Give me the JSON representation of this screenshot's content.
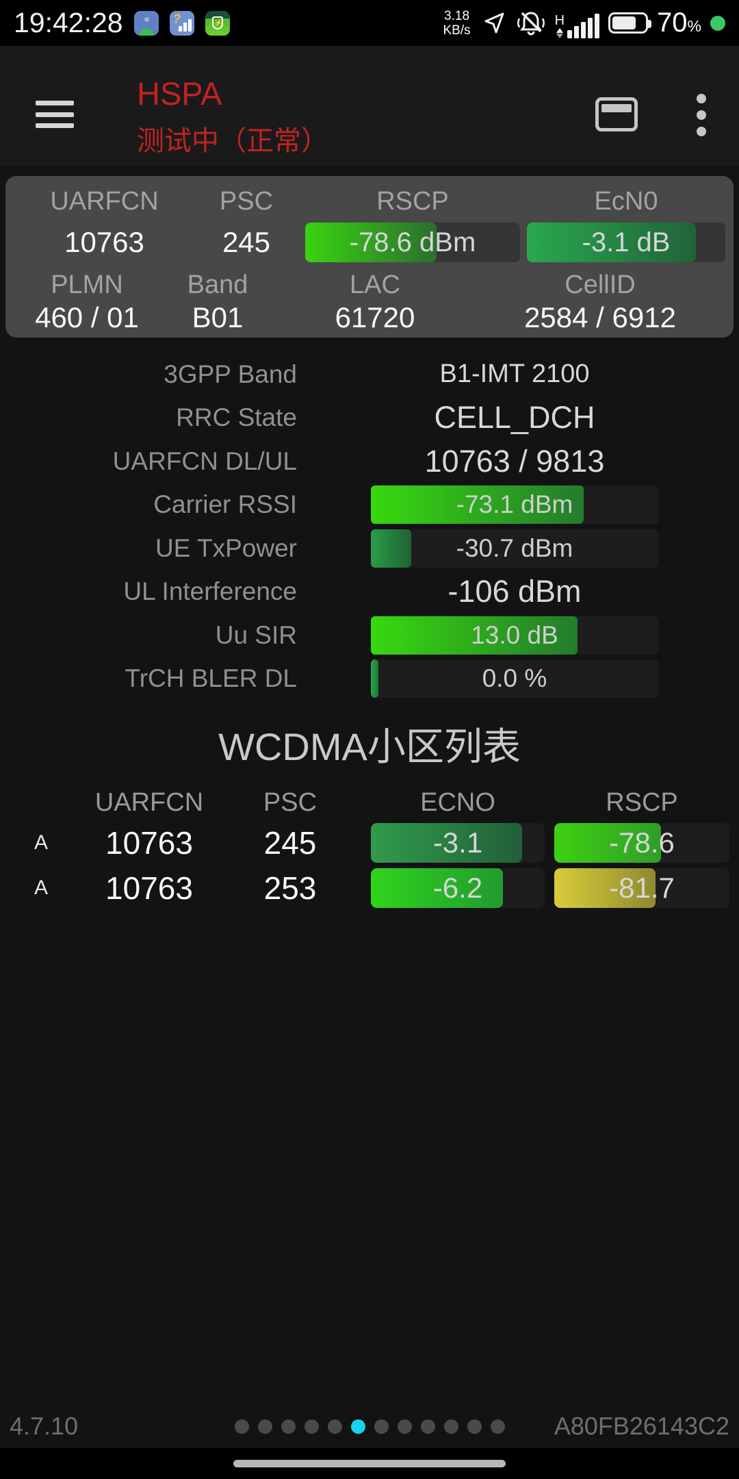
{
  "colors": {
    "bg": "#131313",
    "statusbar_bg": "#000000",
    "appbar_bg": "#1a1a1a",
    "panel_bg": "#484848",
    "track_panel": "#353535",
    "track_dark": "#1d1d1d",
    "accent_red": "#c32222",
    "dot_active": "#19d2f0",
    "dot_inactive": "#4a4a4a",
    "status_green_dot": "#3bc968"
  },
  "icons": {
    "left": [
      "android-app-icon",
      "signal-app-icon",
      "battery-shield-app-icon"
    ],
    "right": [
      "location-arrow-icon",
      "mute-vibrate-bell-icon",
      "signal-strength-icon",
      "battery-icon"
    ],
    "appbar": [
      "menu-icon",
      "card-view-icon",
      "overflow-menu-icon"
    ]
  },
  "status_bar": {
    "time": "19:42:28",
    "net_speed_value": "3.18",
    "net_speed_unit": "KB/s",
    "network_type": "H",
    "battery_percent": "70",
    "percent_sign": "%"
  },
  "app_bar": {
    "title": "HSPA",
    "subtitle": "测试中（正常）"
  },
  "summary_panel": {
    "row1": {
      "headers": [
        "UARFCN",
        "PSC",
        "RSCP",
        "EcN0"
      ],
      "uarfcn": "10763",
      "psc": "245",
      "rscp": {
        "text": "-78.6 dBm",
        "fill_pct": 61,
        "grad_from": "#39d410",
        "grad_to": "#2b6e2e"
      },
      "ecn0": {
        "text": "-3.1 dB",
        "fill_pct": 85,
        "grad_from": "#2aa84e",
        "grad_to": "#206339"
      }
    },
    "row2": {
      "headers": [
        "PLMN",
        "Band",
        "LAC",
        "CellID"
      ],
      "plmn": "460 / 01",
      "band": "B01",
      "lac": "61720",
      "cellid": "2584 / 6912"
    }
  },
  "details": {
    "rows": [
      {
        "label": "3GPP Band",
        "value": "B1-IMT 2100"
      },
      {
        "label": "RRC State",
        "value": "CELL_DCH"
      },
      {
        "label": "UARFCN DL/UL",
        "value": "10763 / 9813"
      },
      {
        "label": "Carrier RSSI",
        "value": "-73.1 dBm",
        "fill_pct": 74,
        "grad_from": "#38d90e",
        "grad_to": "#237b2c"
      },
      {
        "label": "UE TxPower",
        "value": "-30.7 dBm",
        "fill_pct": 14,
        "grad_from": "#2c9c4a",
        "grad_to": "#1e6234"
      },
      {
        "label": "UL Interference",
        "value": "-106 dBm"
      },
      {
        "label": "Uu SIR",
        "value": "13.0 dB",
        "fill_pct": 72,
        "grad_from": "#38d90e",
        "grad_to": "#237b2c"
      },
      {
        "label": "TrCH BLER DL",
        "value": "0.0 %",
        "fill_pct": 2.5,
        "grad_from": "#2aa34b",
        "grad_to": "#1e7a36"
      }
    ]
  },
  "cell_list": {
    "title": "WCDMA小区列表",
    "headers": [
      "UARFCN",
      "PSC",
      "ECNO",
      "RSCP"
    ],
    "rows": [
      {
        "set": "A",
        "uarfcn": "10763",
        "psc": "245",
        "ecno": {
          "text": "-3.1",
          "fill_pct": 87,
          "grad_from": "#309c4b",
          "grad_to": "#235f3a"
        },
        "rscp": {
          "text": "-78.6",
          "fill_pct": 61,
          "grad_from": "#3ed011",
          "grad_to": "#2f9e2a"
        }
      },
      {
        "set": "A",
        "uarfcn": "10763",
        "psc": "253",
        "ecno": {
          "text": "-6.2",
          "fill_pct": 76,
          "grad_from": "#2fd41c",
          "grad_to": "#219b30"
        },
        "rscp": {
          "text": "-81.7",
          "fill_pct": 58,
          "grad_from": "#d8cd3b",
          "grad_to": "#8e8a2f"
        }
      }
    ]
  },
  "footer": {
    "version": "4.7.10",
    "device_id": "A80FB26143C2",
    "page_dots_total": 12,
    "active_dot_index": 5
  }
}
